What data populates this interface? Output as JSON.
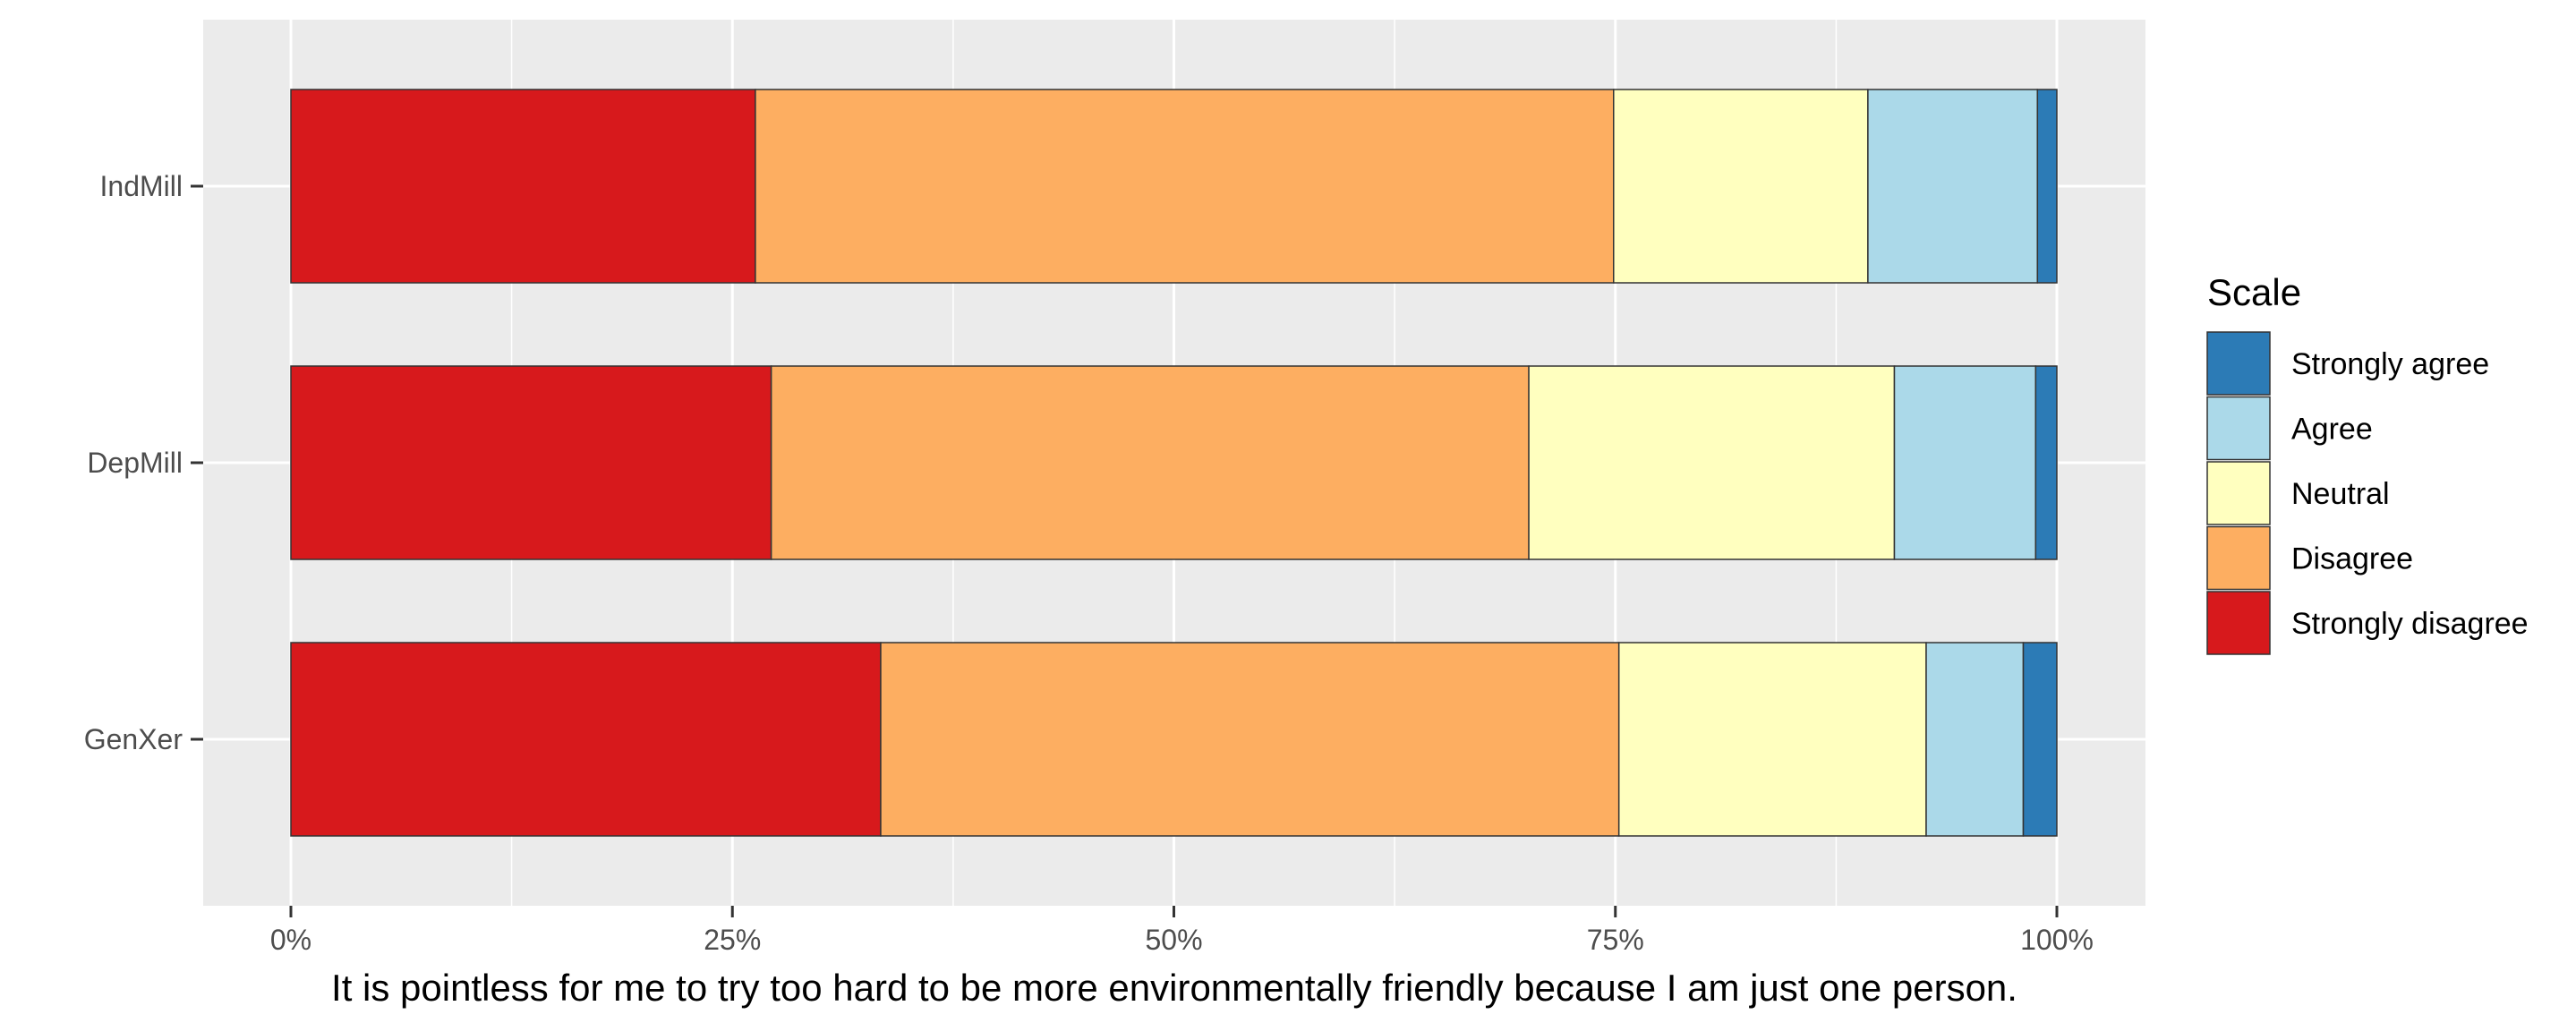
{
  "chart_data": {
    "type": "bar",
    "orientation": "horizontal",
    "stacked": true,
    "percent": true,
    "categories": [
      "IndMill",
      "DepMill",
      "GenXer"
    ],
    "series": [
      {
        "name": "Strongly disagree",
        "color": "#D7191C",
        "values": [
          26.3,
          27.2,
          33.4
        ]
      },
      {
        "name": "Disagree",
        "color": "#FDAE61",
        "values": [
          48.6,
          42.9,
          41.8
        ]
      },
      {
        "name": "Neutral",
        "color": "#FFFFBF",
        "values": [
          14.4,
          20.7,
          17.4
        ]
      },
      {
        "name": "Agree",
        "color": "#ABD9E9",
        "values": [
          9.6,
          8.0,
          5.5
        ]
      },
      {
        "name": "Strongly agree",
        "color": "#2C7BB6",
        "values": [
          1.1,
          1.2,
          1.9
        ]
      }
    ],
    "xlim": [
      0,
      100
    ],
    "x_ticks": [
      "0%",
      "25%",
      "50%",
      "75%",
      "100%"
    ],
    "xlabel": "It is pointless for me to try too hard to be more environmentally friendly because I am just one person.",
    "ylabel": "",
    "grid": true,
    "legend": {
      "title": "Scale",
      "placement": "right",
      "entries": [
        "Strongly agree",
        "Agree",
        "Neutral",
        "Disagree",
        "Strongly disagree"
      ]
    }
  }
}
